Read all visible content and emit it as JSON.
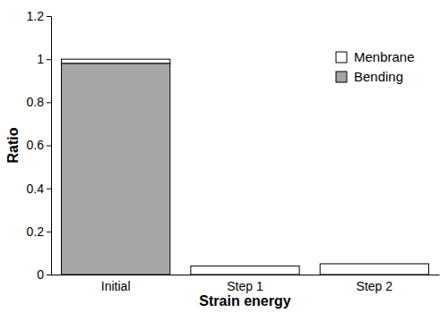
{
  "chart_data": {
    "type": "bar",
    "stacked": true,
    "categories": [
      "Initial",
      "Step 1",
      "Step 2"
    ],
    "series": [
      {
        "name": "Menbrane",
        "color": "#ffffff",
        "values": [
          0.02,
          0.04,
          0.05
        ]
      },
      {
        "name": "Bending",
        "color": "#a6a6a6",
        "values": [
          0.98,
          0.0,
          0.0
        ]
      }
    ],
    "x_label": "Strain energy",
    "y_label": "Ratio",
    "ylim": [
      0,
      1.2
    ],
    "yticks": [
      0,
      0.2,
      0.4,
      0.6,
      0.8,
      1,
      1.2
    ],
    "grid": false,
    "legend": "top-right"
  }
}
